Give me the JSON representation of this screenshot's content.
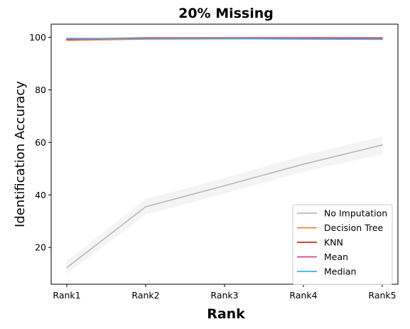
{
  "chart_data": {
    "type": "line",
    "title": "20% Missing",
    "xlabel": "Rank",
    "ylabel": "Identification Accuracy",
    "categories": [
      "Rank1",
      "Rank2",
      "Rank3",
      "Rank4",
      "Rank5"
    ],
    "ylim": [
      6,
      105
    ],
    "yticks": [
      20,
      40,
      60,
      80,
      100
    ],
    "grid": false,
    "legend_position": "lower-right",
    "series": [
      {
        "name": "No Imputation",
        "color": "#b8b8b8",
        "values": [
          12.3,
          35.5,
          43.5,
          51.7,
          59.0
        ],
        "band_lower": [
          10.0,
          32.5,
          40.5,
          48.8,
          55.5
        ],
        "band_upper": [
          14.8,
          38.5,
          46.5,
          55.0,
          62.3
        ]
      },
      {
        "name": "Decision Tree",
        "color": "#f07f3c",
        "values": [
          98.8,
          99.3,
          99.4,
          99.5,
          99.5
        ]
      },
      {
        "name": "KNN",
        "color": "#c0301c",
        "values": [
          99.3,
          99.8,
          99.8,
          99.8,
          99.8
        ]
      },
      {
        "name": "Mean",
        "color": "#e0457b",
        "values": [
          99.2,
          99.7,
          99.7,
          99.7,
          99.7
        ]
      },
      {
        "name": "Median",
        "color": "#3ab0e8",
        "values": [
          99.6,
          99.5,
          99.5,
          99.3,
          99.2
        ]
      }
    ]
  }
}
